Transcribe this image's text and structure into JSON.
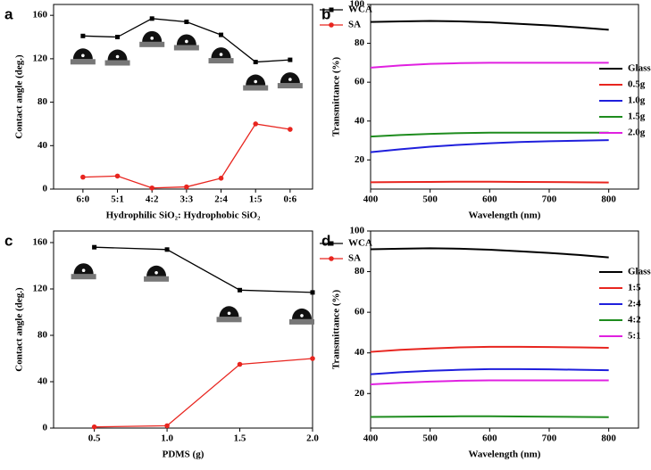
{
  "chart_data": [
    {
      "type": "category-line",
      "panel_label": "a",
      "xlabel": "Hydrophilic SiO₂: Hydrophobic SiO₂",
      "ylabel": "Contact angle (deg.)",
      "categories": [
        "6:0",
        "5:1",
        "4:2",
        "3:3",
        "2:4",
        "1:5",
        "0:6"
      ],
      "ylim": [
        0,
        170
      ],
      "yticks": [
        0,
        40,
        80,
        120,
        160
      ],
      "legend": "upper right",
      "series": [
        {
          "name": "WCA",
          "color": "#000000",
          "marker": "square",
          "values": [
            141,
            140,
            157,
            154,
            142,
            117,
            119
          ]
        },
        {
          "name": "SA",
          "color": "#e8251f",
          "marker": "circle",
          "values": [
            11,
            12,
            1,
            2,
            10,
            60,
            55
          ]
        }
      ]
    },
    {
      "type": "line",
      "panel_label": "b",
      "xlabel": "Wavelength (nm)",
      "ylabel": "Transmittance (%)",
      "x": [
        400,
        450,
        500,
        550,
        600,
        650,
        700,
        750,
        800
      ],
      "xlim": [
        400,
        850
      ],
      "xticks": [
        400,
        500,
        600,
        700,
        800
      ],
      "ylim": [
        5,
        100
      ],
      "yticks": [
        20,
        40,
        60,
        80,
        100
      ],
      "legend": "center right",
      "series": [
        {
          "name": "Glass",
          "color": "#000000",
          "values": [
            91,
            91.3,
            91.5,
            91.3,
            90.8,
            90,
            89.2,
            88.2,
            87
          ]
        },
        {
          "name": "0.5g",
          "color": "#e8251f",
          "values": [
            8.5,
            8.6,
            8.7,
            8.8,
            8.8,
            8.7,
            8.6,
            8.5,
            8.4
          ]
        },
        {
          "name": "1.0g",
          "color": "#1f1fdc",
          "values": [
            24,
            25.5,
            26.8,
            27.8,
            28.6,
            29.2,
            29.6,
            29.9,
            30.2
          ]
        },
        {
          "name": "1.5g",
          "color": "#1e8c1e",
          "values": [
            32,
            32.8,
            33.4,
            33.8,
            34,
            34,
            34,
            34,
            34
          ]
        },
        {
          "name": "2.0g",
          "color": "#e020e0",
          "values": [
            67.5,
            68.6,
            69.4,
            69.8,
            70,
            70,
            70,
            70,
            70
          ]
        }
      ]
    },
    {
      "type": "line",
      "panel_label": "c",
      "xlabel": "PDMS (g)",
      "ylabel": "Contact angle (deg.)",
      "x": [
        0.5,
        1,
        1.5,
        2
      ],
      "xlim": [
        0.22,
        2
      ],
      "xticks": [
        0.5,
        {
          "value": 1,
          "label": "1.0"
        },
        1.5,
        {
          "value": 2,
          "label": "2.0"
        }
      ],
      "ylim": [
        0,
        170
      ],
      "yticks": [
        0,
        40,
        80,
        120,
        160
      ],
      "legend": "upper right",
      "series": [
        {
          "name": "WCA",
          "color": "#000000",
          "marker": "square",
          "values": [
            156,
            154,
            119,
            117
          ]
        },
        {
          "name": "SA",
          "color": "#e8251f",
          "marker": "circle",
          "values": [
            1,
            2,
            55,
            60
          ]
        }
      ]
    },
    {
      "type": "line",
      "panel_label": "d",
      "xlabel": "Wavelength (nm)",
      "ylabel": "Transmittance (%)",
      "x": [
        400,
        450,
        500,
        550,
        600,
        650,
        700,
        750,
        800
      ],
      "xlim": [
        400,
        850
      ],
      "xticks": [
        400,
        500,
        600,
        700,
        800
      ],
      "ylim": [
        3,
        100
      ],
      "yticks": [
        20,
        40,
        60,
        80,
        100
      ],
      "legend": "center right",
      "series": [
        {
          "name": "Glass",
          "color": "#000000",
          "values": [
            91,
            91.3,
            91.5,
            91.3,
            90.8,
            90,
            89.2,
            88.2,
            87
          ]
        },
        {
          "name": "1:5",
          "color": "#e8251f",
          "values": [
            40.5,
            41.5,
            42.2,
            42.7,
            43,
            43,
            42.9,
            42.7,
            42.5
          ]
        },
        {
          "name": "2:4",
          "color": "#1f1fdc",
          "values": [
            29.5,
            30.5,
            31.2,
            31.7,
            32,
            32,
            31.9,
            31.7,
            31.5
          ]
        },
        {
          "name": "4:2",
          "color": "#1e8c1e",
          "values": [
            8.5,
            8.6,
            8.7,
            8.8,
            8.8,
            8.7,
            8.6,
            8.5,
            8.4
          ]
        },
        {
          "name": "5:1",
          "color": "#e020e0",
          "values": [
            24.5,
            25.3,
            25.9,
            26.3,
            26.5,
            26.5,
            26.5,
            26.5,
            26.5
          ]
        }
      ]
    }
  ]
}
